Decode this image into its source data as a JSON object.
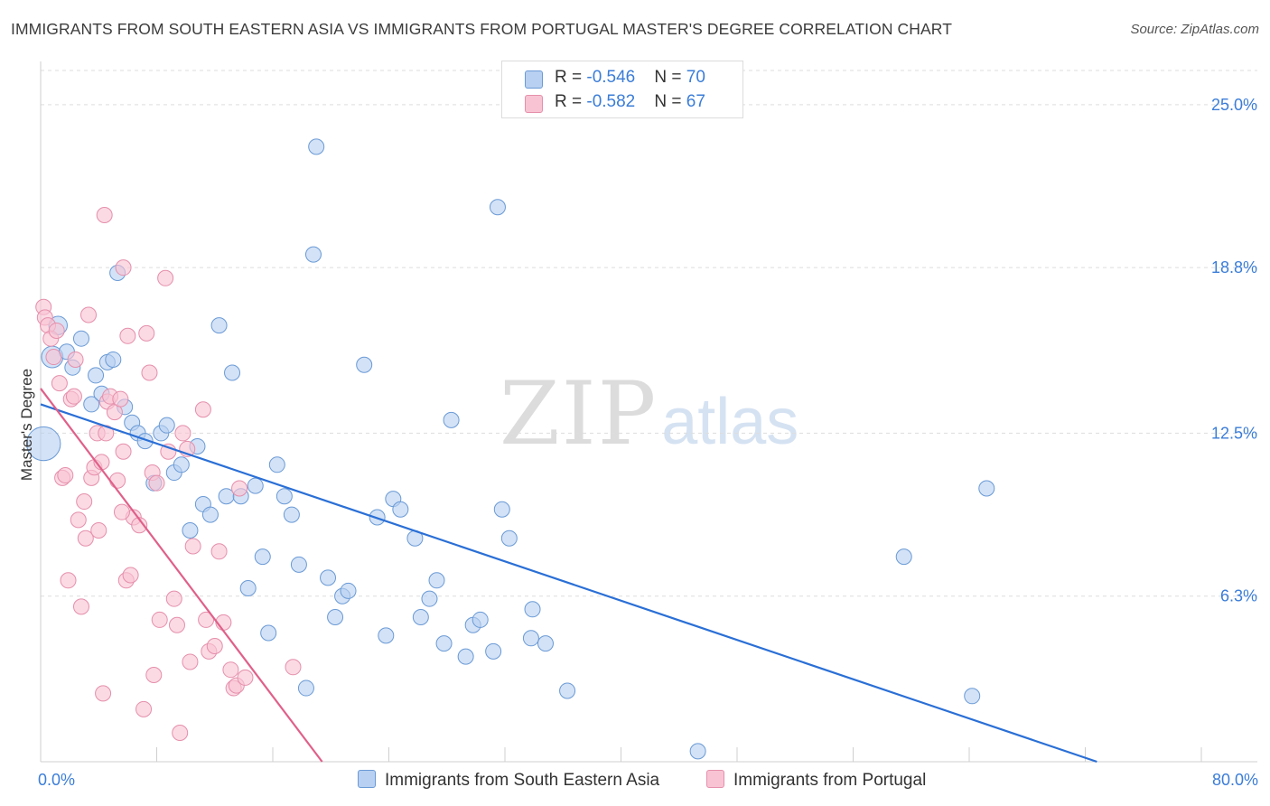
{
  "title": "IMMIGRANTS FROM SOUTH EASTERN ASIA VS IMMIGRANTS FROM PORTUGAL MASTER'S DEGREE CORRELATION CHART",
  "source": "Source: ZipAtlas.com",
  "watermark": {
    "zip": "ZIP",
    "atlas": "atlas"
  },
  "colors": {
    "blue_fill": "#b8d0f1",
    "blue_stroke": "#6a9ad6",
    "blue_line": "#2a6fd6",
    "pink_fill": "#f8c4d4",
    "pink_stroke": "#e58fab",
    "pink_line": "#e0608a",
    "value_text": "#3b7dd8",
    "grid": "#dddddd"
  },
  "legend": {
    "blue": {
      "r_label": "R = ",
      "r_value": "-0.546",
      "n_label": "N = ",
      "n_value": "70"
    },
    "pink": {
      "r_label": "R = ",
      "r_value": "-0.582",
      "n_label": "N = ",
      "n_value": "67"
    }
  },
  "chart_data": {
    "type": "scatter",
    "title": "IMMIGRANTS FROM SOUTH EASTERN ASIA VS IMMIGRANTS FROM PORTUGAL MASTER'S DEGREE CORRELATION CHART",
    "xlabel": "",
    "ylabel": "Master's Degree",
    "xlim": [
      0,
      80
    ],
    "ylim": [
      0,
      26.3
    ],
    "x_tick_labels": {
      "min": "0.0%",
      "max": "80.0%"
    },
    "y_ticks": [
      {
        "value": 6.3,
        "label": "6.3%"
      },
      {
        "value": 12.5,
        "label": "12.5%"
      },
      {
        "value": 18.8,
        "label": "18.8%"
      },
      {
        "value": 25.0,
        "label": "25.0%"
      }
    ],
    "grid": true,
    "series": [
      {
        "name": "Immigrants from South Eastern Asia",
        "color": "blue",
        "trend": {
          "x0": 0,
          "y0": 13.6,
          "x1": 72.8,
          "y1": 0
        },
        "points": [
          [
            0.2,
            12.1,
            2.2
          ],
          [
            0.8,
            15.4,
            1.4
          ],
          [
            1.2,
            16.6,
            1.2
          ],
          [
            1.8,
            15.6,
            1.0
          ],
          [
            2.2,
            15.0,
            1.0
          ],
          [
            2.8,
            16.1,
            1.0
          ],
          [
            3.5,
            13.6,
            1.0
          ],
          [
            3.8,
            14.7,
            1.0
          ],
          [
            4.2,
            14.0,
            1.0
          ],
          [
            4.6,
            15.2,
            1.0
          ],
          [
            5.0,
            15.3,
            1.0
          ],
          [
            5.3,
            18.6,
            1.0
          ],
          [
            5.8,
            13.5,
            1.0
          ],
          [
            6.3,
            12.9,
            1.0
          ],
          [
            6.7,
            12.5,
            1.0
          ],
          [
            7.2,
            12.2,
            1.0
          ],
          [
            7.8,
            10.6,
            1.0
          ],
          [
            8.3,
            12.5,
            1.0
          ],
          [
            8.7,
            12.8,
            1.0
          ],
          [
            9.2,
            11.0,
            1.0
          ],
          [
            9.7,
            11.3,
            1.0
          ],
          [
            10.3,
            8.8,
            1.0
          ],
          [
            10.8,
            12.0,
            1.0
          ],
          [
            11.2,
            9.8,
            1.0
          ],
          [
            11.7,
            9.4,
            1.0
          ],
          [
            12.3,
            16.6,
            1.0
          ],
          [
            12.8,
            10.1,
            1.0
          ],
          [
            13.2,
            14.8,
            1.0
          ],
          [
            13.8,
            10.1,
            1.0
          ],
          [
            14.3,
            6.6,
            1.0
          ],
          [
            14.8,
            10.5,
            1.0
          ],
          [
            15.3,
            7.8,
            1.0
          ],
          [
            15.7,
            4.9,
            1.0
          ],
          [
            16.3,
            11.3,
            1.0
          ],
          [
            16.8,
            10.1,
            1.0
          ],
          [
            17.3,
            9.4,
            1.0
          ],
          [
            17.8,
            7.5,
            1.0
          ],
          [
            18.3,
            2.8,
            1.0
          ],
          [
            18.8,
            19.3,
            1.0
          ],
          [
            19.0,
            23.4,
            1.0
          ],
          [
            19.8,
            7.0,
            1.0
          ],
          [
            20.3,
            5.5,
            1.0
          ],
          [
            20.8,
            6.3,
            1.0
          ],
          [
            21.2,
            6.5,
            1.0
          ],
          [
            22.3,
            15.1,
            1.0
          ],
          [
            23.2,
            9.3,
            1.0
          ],
          [
            23.8,
            4.8,
            1.0
          ],
          [
            24.3,
            10.0,
            1.0
          ],
          [
            24.8,
            9.6,
            1.0
          ],
          [
            25.8,
            8.5,
            1.0
          ],
          [
            26.2,
            5.5,
            1.0
          ],
          [
            26.8,
            6.2,
            1.0
          ],
          [
            27.3,
            6.9,
            1.0
          ],
          [
            27.8,
            4.5,
            1.0
          ],
          [
            28.3,
            13.0,
            1.0
          ],
          [
            29.3,
            4.0,
            1.0
          ],
          [
            29.8,
            5.2,
            1.0
          ],
          [
            30.3,
            5.4,
            1.0
          ],
          [
            31.2,
            4.2,
            1.0
          ],
          [
            31.8,
            9.6,
            1.0
          ],
          [
            31.5,
            21.1,
            1.0
          ],
          [
            32.3,
            8.5,
            1.0
          ],
          [
            33.8,
            4.7,
            1.0
          ],
          [
            33.9,
            5.8,
            1.0
          ],
          [
            34.8,
            4.5,
            1.0
          ],
          [
            36.3,
            2.7,
            1.0
          ],
          [
            45.3,
            0.4,
            1.0
          ],
          [
            59.5,
            7.8,
            1.0
          ],
          [
            64.2,
            2.5,
            1.0
          ],
          [
            65.2,
            10.4,
            1.0
          ]
        ]
      },
      {
        "name": "Immigrants from Portugal",
        "color": "pink",
        "trend": {
          "x0": 0,
          "y0": 14.2,
          "x1": 19.4,
          "y1": 0
        },
        "points": [
          [
            0.2,
            17.3,
            1.0
          ],
          [
            0.3,
            16.9,
            1.0
          ],
          [
            0.5,
            16.6,
            1.0
          ],
          [
            0.7,
            16.1,
            1.0
          ],
          [
            0.9,
            15.4,
            1.0
          ],
          [
            1.1,
            16.4,
            1.0
          ],
          [
            1.3,
            14.4,
            1.0
          ],
          [
            1.5,
            10.8,
            1.0
          ],
          [
            1.7,
            10.9,
            1.0
          ],
          [
            1.9,
            6.9,
            1.0
          ],
          [
            2.1,
            13.8,
            1.0
          ],
          [
            2.3,
            13.9,
            1.0
          ],
          [
            2.4,
            15.3,
            1.0
          ],
          [
            2.6,
            9.2,
            1.0
          ],
          [
            2.8,
            5.9,
            1.0
          ],
          [
            3.0,
            9.9,
            1.0
          ],
          [
            3.1,
            8.5,
            1.0
          ],
          [
            3.3,
            17.0,
            1.0
          ],
          [
            3.5,
            10.8,
            1.0
          ],
          [
            3.7,
            11.2,
            1.0
          ],
          [
            3.9,
            12.5,
            1.0
          ],
          [
            4.0,
            8.8,
            1.0
          ],
          [
            4.2,
            11.4,
            1.0
          ],
          [
            4.3,
            2.6,
            1.0
          ],
          [
            4.4,
            20.8,
            1.0
          ],
          [
            4.6,
            13.7,
            1.0
          ],
          [
            4.8,
            13.9,
            1.0
          ],
          [
            5.1,
            13.3,
            1.0
          ],
          [
            5.3,
            10.7,
            1.0
          ],
          [
            5.5,
            13.8,
            1.0
          ],
          [
            4.5,
            12.5,
            1.0
          ],
          [
            5.7,
            18.8,
            1.0
          ],
          [
            5.9,
            6.9,
            1.0
          ],
          [
            6.0,
            16.2,
            1.0
          ],
          [
            6.2,
            7.1,
            1.0
          ],
          [
            6.4,
            9.3,
            1.0
          ],
          [
            5.7,
            11.8,
            1.0
          ],
          [
            5.6,
            9.5,
            1.0
          ],
          [
            7.8,
            3.3,
            1.0
          ],
          [
            7.1,
            2.0,
            1.0
          ],
          [
            7.3,
            16.3,
            1.0
          ],
          [
            7.5,
            14.8,
            1.0
          ],
          [
            7.7,
            11.0,
            1.0
          ],
          [
            8.0,
            10.6,
            1.0
          ],
          [
            6.8,
            9.0,
            1.0
          ],
          [
            8.2,
            5.4,
            1.0
          ],
          [
            8.6,
            18.4,
            1.0
          ],
          [
            8.8,
            11.8,
            1.0
          ],
          [
            9.2,
            6.2,
            1.0
          ],
          [
            9.4,
            5.2,
            1.0
          ],
          [
            9.6,
            1.1,
            1.0
          ],
          [
            9.8,
            12.5,
            1.0
          ],
          [
            10.1,
            11.9,
            1.0
          ],
          [
            10.3,
            3.8,
            1.0
          ],
          [
            10.5,
            8.2,
            1.0
          ],
          [
            11.2,
            13.4,
            1.0
          ],
          [
            11.4,
            5.4,
            1.0
          ],
          [
            11.6,
            4.2,
            1.0
          ],
          [
            12.0,
            4.4,
            1.0
          ],
          [
            12.3,
            8.0,
            1.0
          ],
          [
            12.6,
            5.3,
            1.0
          ],
          [
            13.1,
            3.5,
            1.0
          ],
          [
            13.3,
            2.8,
            1.0
          ],
          [
            13.5,
            2.9,
            1.0
          ],
          [
            14.1,
            3.2,
            1.0
          ],
          [
            13.7,
            10.4,
            1.0
          ],
          [
            17.4,
            3.6,
            1.0
          ]
        ]
      }
    ]
  },
  "bottom_legend": {
    "blue_label": "Immigrants from South Eastern Asia",
    "pink_label": "Immigrants from Portugal"
  }
}
